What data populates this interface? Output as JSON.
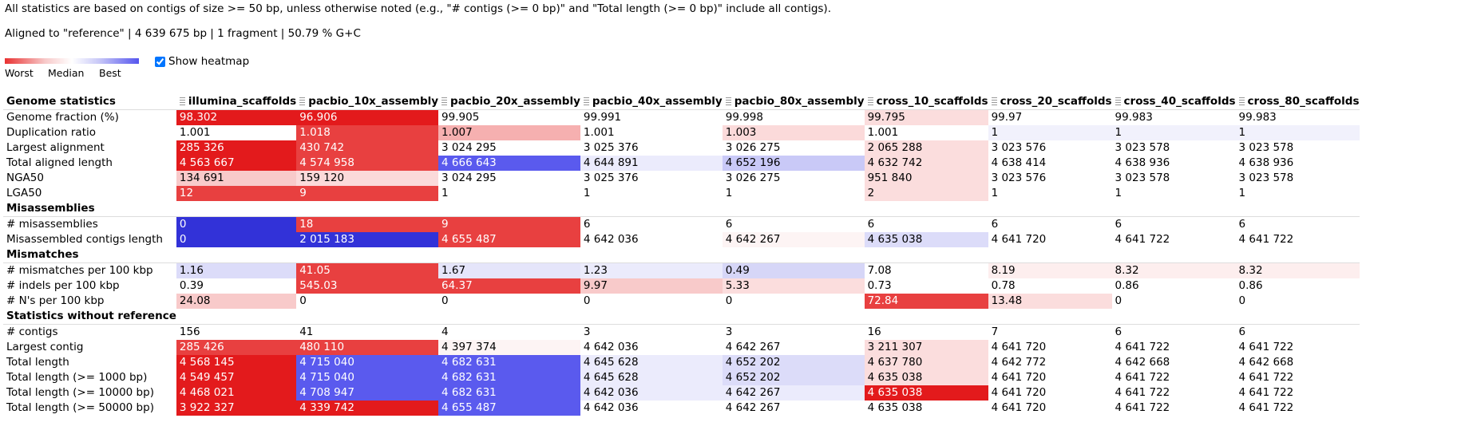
{
  "note": "All statistics are based on contigs of size >= 50 bp, unless otherwise noted (e.g., \"# contigs (>= 0 bp)\" and \"Total length (>= 0 bp)\" include all contigs).",
  "aligned": "Aligned to \"reference\" | 4 639 675 bp | 1 fragment | 50.79 % G+C",
  "legend": {
    "worst": "Worst",
    "median": "Median",
    "best": "Best"
  },
  "heatmap_toggle": {
    "label": "Show heatmap",
    "checked": true
  },
  "colors": {
    "worst": "#e31a1c",
    "best": "#5a5aee",
    "group_border": "#dddddd"
  },
  "columns": [
    "illumina_scaffolds",
    "pacbio_10x_assembly",
    "pacbio_20x_assembly",
    "pacbio_40x_assembly",
    "pacbio_80x_assembly",
    "cross_10_scaffolds",
    "cross_20_scaffolds",
    "cross_40_scaffolds",
    "cross_80_scaffolds"
  ],
  "groups": [
    {
      "title": "Genome statistics",
      "is_header": true,
      "rows": [
        {
          "name": "Genome fraction (%)",
          "values": [
            "98.302",
            "96.906",
            "99.905",
            "99.991",
            "99.998",
            "99.795",
            "99.97",
            "99.983",
            "99.983"
          ],
          "colors": [
            "#e31a1c",
            "#e31a1c",
            "#ffffff",
            "#ffffff",
            "#ffffff",
            "#fbdddd",
            "#ffffff",
            "#ffffff",
            "#ffffff"
          ]
        },
        {
          "name": "Duplication ratio",
          "values": [
            "1.001",
            "1.018",
            "1.007",
            "1.001",
            "1.003",
            "1.001",
            "1",
            "1",
            "1"
          ],
          "colors": [
            "#ffffff",
            "#e84040",
            "#f6b0b0",
            "#ffffff",
            "#fbdada",
            "#ffffff",
            "#f1f1fc",
            "#f1f1fc",
            "#f1f1fc"
          ]
        },
        {
          "name": "Largest alignment",
          "values": [
            "285 326",
            "430 742",
            "3 024 295",
            "3 025 376",
            "3 026 275",
            "2 065 288",
            "3 023 576",
            "3 023 578",
            "3 023 578"
          ],
          "colors": [
            "#e31a1c",
            "#e84040",
            "#ffffff",
            "#ffffff",
            "#ffffff",
            "#fbdddd",
            "#ffffff",
            "#ffffff",
            "#ffffff"
          ]
        },
        {
          "name": "Total aligned length",
          "values": [
            "4 563 667",
            "4 574 958",
            "4 666 643",
            "4 644 891",
            "4 652 196",
            "4 632 742",
            "4 638 414",
            "4 638 936",
            "4 638 936"
          ],
          "colors": [
            "#e31a1c",
            "#e84040",
            "#5a5aee",
            "#ebebfc",
            "#c9c9f7",
            "#fbdddd",
            "#ffffff",
            "#ffffff",
            "#ffffff"
          ]
        },
        {
          "name": "NGA50",
          "values": [
            "134 691",
            "159 120",
            "3 024 295",
            "3 025 376",
            "3 026 275",
            "951 840",
            "3 023 576",
            "3 023 578",
            "3 023 578"
          ],
          "colors": [
            "#f8caca",
            "#fbdada",
            "#ffffff",
            "#ffffff",
            "#ffffff",
            "#fbdddd",
            "#ffffff",
            "#ffffff",
            "#ffffff"
          ]
        },
        {
          "name": "LGA50",
          "values": [
            "12",
            "9",
            "1",
            "1",
            "1",
            "2",
            "1",
            "1",
            "1"
          ],
          "colors": [
            "#e84040",
            "#e84040",
            "#ffffff",
            "#ffffff",
            "#ffffff",
            "#fbdddd",
            "#ffffff",
            "#ffffff",
            "#ffffff"
          ]
        }
      ]
    },
    {
      "title": "Misassemblies",
      "rows": [
        {
          "name": "# misassemblies",
          "values": [
            "0",
            "18",
            "9",
            "6",
            "6",
            "6",
            "6",
            "6",
            "6"
          ],
          "colors": [
            "#3232d8",
            "#e84040",
            "#e84040",
            "#ffffff",
            "#ffffff",
            "#ffffff",
            "#ffffff",
            "#ffffff",
            "#ffffff"
          ]
        },
        {
          "name": "Misassembled contigs length",
          "values": [
            "0",
            "2 015 183",
            "4 655 487",
            "4 642 036",
            "4 642 267",
            "4 635 038",
            "4 641 720",
            "4 641 722",
            "4 641 722"
          ],
          "colors": [
            "#3232d8",
            "#3232d8",
            "#e84040",
            "#ffffff",
            "#fdf4f4",
            "#dcdcf9",
            "#ffffff",
            "#ffffff",
            "#ffffff"
          ]
        }
      ]
    },
    {
      "title": "Mismatches",
      "rows": [
        {
          "name": "# mismatches per 100 kbp",
          "values": [
            "1.16",
            "41.05",
            "1.67",
            "1.23",
            "0.49",
            "7.08",
            "8.19",
            "8.32",
            "8.32"
          ],
          "colors": [
            "#dcdcf9",
            "#e84040",
            "#e5e5fa",
            "#ebebfc",
            "#d6d6f7",
            "#ffffff",
            "#fdeeee",
            "#fdeeee",
            "#fdeeee"
          ]
        },
        {
          "name": "# indels per 100 kbp",
          "values": [
            "0.39",
            "545.03",
            "64.37",
            "9.97",
            "5.33",
            "0.73",
            "0.78",
            "0.86",
            "0.86"
          ],
          "colors": [
            "#ffffff",
            "#e84040",
            "#e84040",
            "#f8caca",
            "#fbdddd",
            "#ffffff",
            "#ffffff",
            "#ffffff",
            "#ffffff"
          ]
        },
        {
          "name": "# N's per 100 kbp",
          "values": [
            "24.08",
            "0",
            "0",
            "0",
            "0",
            "72.84",
            "13.48",
            "0",
            "0"
          ],
          "colors": [
            "#f8caca",
            "#ffffff",
            "#ffffff",
            "#ffffff",
            "#ffffff",
            "#e84040",
            "#fbdddd",
            "#ffffff",
            "#ffffff"
          ]
        }
      ]
    },
    {
      "title": "Statistics without reference",
      "rows": [
        {
          "name": "# contigs",
          "values": [
            "156",
            "41",
            "4",
            "3",
            "3",
            "16",
            "7",
            "6",
            "6"
          ],
          "colors": [
            "#ffffff",
            "#ffffff",
            "#ffffff",
            "#ffffff",
            "#ffffff",
            "#ffffff",
            "#ffffff",
            "#ffffff",
            "#ffffff"
          ]
        },
        {
          "name": "Largest contig",
          "values": [
            "285 426",
            "480 110",
            "4 397 374",
            "4 642 036",
            "4 642 267",
            "3 211 307",
            "4 641 720",
            "4 641 722",
            "4 641 722"
          ],
          "colors": [
            "#e84040",
            "#e84040",
            "#fdf4f4",
            "#ffffff",
            "#ffffff",
            "#fbdddd",
            "#ffffff",
            "#ffffff",
            "#ffffff"
          ]
        },
        {
          "name": "Total length",
          "values": [
            "4 568 145",
            "4 715 040",
            "4 682 631",
            "4 645 628",
            "4 652 202",
            "4 637 780",
            "4 642 772",
            "4 642 668",
            "4 642 668"
          ],
          "colors": [
            "#e31a1c",
            "#5a5aee",
            "#5a5aee",
            "#ebebfc",
            "#dcdcf9",
            "#fbdddd",
            "#ffffff",
            "#ffffff",
            "#ffffff"
          ]
        },
        {
          "name": "Total length (>= 1000 bp)",
          "values": [
            "4 549 457",
            "4 715 040",
            "4 682 631",
            "4 645 628",
            "4 652 202",
            "4 635 038",
            "4 641 720",
            "4 641 722",
            "4 641 722"
          ],
          "colors": [
            "#e31a1c",
            "#5a5aee",
            "#5a5aee",
            "#ebebfc",
            "#dcdcf9",
            "#fbdddd",
            "#ffffff",
            "#ffffff",
            "#ffffff"
          ]
        },
        {
          "name": "Total length (>= 10000 bp)",
          "values": [
            "4 468 021",
            "4 708 947",
            "4 682 631",
            "4 642 036",
            "4 642 267",
            "4 635 038",
            "4 641 720",
            "4 641 722",
            "4 641 722"
          ],
          "colors": [
            "#e31a1c",
            "#5a5aee",
            "#5a5aee",
            "#ebebfc",
            "#ebebfc",
            "#e31a1c",
            "#ffffff",
            "#ffffff",
            "#ffffff"
          ]
        },
        {
          "name": "Total length (>= 50000 bp)",
          "values": [
            "3 922 327",
            "4 339 742",
            "4 655 487",
            "4 642 036",
            "4 642 267",
            "4 635 038",
            "4 641 720",
            "4 641 722",
            "4 641 722"
          ],
          "colors": [
            "#e31a1c",
            "#e31a1c",
            "#5a5aee",
            "#ffffff",
            "#ffffff",
            "#ffffff",
            "#ffffff",
            "#ffffff",
            "#ffffff"
          ]
        }
      ]
    }
  ]
}
